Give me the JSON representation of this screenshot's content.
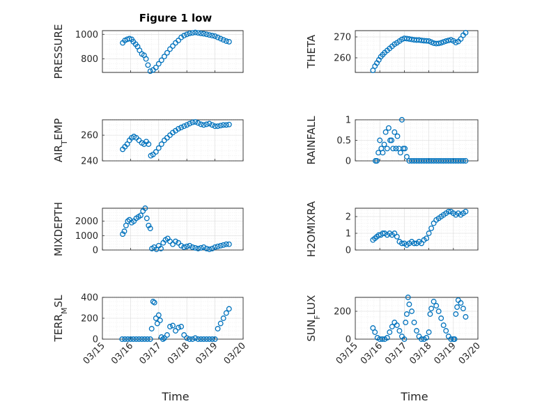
{
  "title": "Figure 1 low",
  "xlabel": "Time",
  "x_tick_labels": [
    "03/15",
    "03/16",
    "03/17",
    "03/18",
    "03/19",
    "03/20"
  ],
  "chart_data": [
    {
      "type": "scatter",
      "ylabel": "PRESSURE",
      "ylim": [
        690,
        1030
      ],
      "yticks": [
        800,
        1000
      ],
      "x": [
        15.72,
        15.8,
        15.88,
        15.96,
        16.04,
        16.1,
        16.18,
        16.25,
        16.32,
        16.4,
        16.48,
        16.55,
        16.62,
        16.7,
        16.8,
        16.9,
        17.0,
        17.1,
        17.2,
        17.3,
        17.4,
        17.5,
        17.6,
        17.7,
        17.8,
        17.9,
        18.0,
        18.1,
        18.2,
        18.3,
        18.4,
        18.5,
        18.6,
        18.7,
        18.8,
        18.9,
        19.0,
        19.1,
        19.2,
        19.3,
        19.4,
        19.5
      ],
      "y": [
        930,
        950,
        960,
        965,
        960,
        940,
        920,
        900,
        870,
        840,
        830,
        800,
        750,
        700,
        710,
        730,
        760,
        790,
        820,
        850,
        880,
        905,
        930,
        950,
        975,
        990,
        1000,
        1008,
        1012,
        1015,
        1012,
        1008,
        1005,
        1000,
        995,
        990,
        985,
        975,
        965,
        955,
        945,
        940
      ],
      "series_name": "PRESSURE"
    },
    {
      "type": "scatter",
      "ylabel": "THETA",
      "ylim": [
        253,
        273
      ],
      "yticks": [
        260,
        270
      ],
      "x": [
        15.72,
        15.8,
        15.88,
        15.96,
        16.04,
        16.12,
        16.2,
        16.3,
        16.4,
        16.5,
        16.6,
        16.7,
        16.8,
        16.9,
        17.0,
        17.1,
        17.2,
        17.3,
        17.4,
        17.5,
        17.6,
        17.7,
        17.8,
        17.9,
        18.0,
        18.1,
        18.2,
        18.3,
        18.4,
        18.5,
        18.6,
        18.7,
        18.8,
        18.9,
        19.0,
        19.1,
        19.2,
        19.3,
        19.4,
        19.5
      ],
      "y": [
        254,
        256,
        257.5,
        259,
        260.5,
        261.5,
        262.5,
        263.5,
        264.5,
        265.5,
        266.5,
        267.2,
        268,
        268.8,
        269.3,
        269.2,
        269,
        268.8,
        268.6,
        268.5,
        268.5,
        268.3,
        268.2,
        268.1,
        268,
        267.5,
        267,
        266.8,
        266.9,
        267.2,
        267.6,
        268,
        268.3,
        268.6,
        268.1,
        267.3,
        267.8,
        269,
        270.8,
        272
      ]
    },
    {
      "type": "scatter",
      "ylabel": "AIR_TEMP",
      "ylim": [
        240,
        272
      ],
      "yticks": [
        240,
        260
      ],
      "x": [
        15.72,
        15.8,
        15.88,
        15.96,
        16.04,
        16.12,
        16.2,
        16.3,
        16.4,
        16.48,
        16.56,
        16.64,
        16.72,
        16.8,
        16.9,
        17.0,
        17.1,
        17.2,
        17.3,
        17.4,
        17.5,
        17.6,
        17.7,
        17.8,
        17.9,
        18.0,
        18.1,
        18.2,
        18.3,
        18.4,
        18.5,
        18.6,
        18.7,
        18.8,
        18.9,
        19.0,
        19.1,
        19.2,
        19.3,
        19.4,
        19.5
      ],
      "y": [
        249,
        251,
        253,
        256,
        258,
        259,
        258,
        256,
        254,
        253,
        255,
        253,
        244,
        245,
        247,
        250,
        253,
        256,
        258,
        260,
        262,
        263.5,
        265,
        266,
        267,
        268,
        269,
        270,
        270.3,
        269.5,
        268.5,
        268,
        268.5,
        269,
        268,
        267,
        267,
        267.5,
        268,
        268,
        268.3
      ]
    },
    {
      "type": "scatter",
      "ylabel": "RAINFALL",
      "ylim": [
        0,
        1
      ],
      "yticks": [
        0,
        0.5,
        1
      ],
      "x": [
        15.82,
        15.88,
        15.94,
        16.0,
        16.06,
        16.12,
        16.18,
        16.24,
        16.3,
        16.36,
        16.42,
        16.48,
        16.54,
        16.6,
        16.66,
        16.72,
        16.78,
        16.84,
        16.9,
        16.96,
        17.02,
        17.1,
        17.2,
        17.3,
        17.4,
        17.5,
        17.6,
        17.7,
        17.8,
        17.9,
        18.0,
        18.1,
        18.2,
        18.3,
        18.4,
        18.5,
        18.6,
        18.7,
        18.8,
        18.9,
        19.0,
        19.1,
        19.2,
        19.3,
        19.4,
        19.5
      ],
      "y": [
        0,
        0,
        0.2,
        0.5,
        0.3,
        0.2,
        0.4,
        0.7,
        0.3,
        0.8,
        0.5,
        0.5,
        0.3,
        0.7,
        0.3,
        0.6,
        0.3,
        0.2,
        1.0,
        0.3,
        0.3,
        0.1,
        0,
        0,
        0,
        0,
        0,
        0,
        0,
        0,
        0,
        0,
        0,
        0,
        0,
        0,
        0,
        0,
        0,
        0,
        0,
        0,
        0,
        0,
        0,
        0
      ]
    },
    {
      "type": "scatter",
      "ylabel": "MIXDEPTH",
      "ylim": [
        0,
        2900
      ],
      "yticks": [
        0,
        1000,
        2000
      ],
      "x": [
        15.72,
        15.78,
        15.84,
        15.9,
        15.96,
        16.04,
        16.12,
        16.2,
        16.28,
        16.36,
        16.44,
        16.52,
        16.58,
        16.64,
        16.7,
        16.76,
        16.84,
        16.92,
        17.0,
        17.08,
        17.16,
        17.24,
        17.32,
        17.4,
        17.5,
        17.6,
        17.7,
        17.8,
        17.9,
        18.0,
        18.1,
        18.2,
        18.3,
        18.4,
        18.5,
        18.6,
        18.7,
        18.8,
        18.9,
        19.0,
        19.1,
        19.2,
        19.3,
        19.4,
        19.5
      ],
      "y": [
        1100,
        1300,
        1700,
        2000,
        2100,
        1900,
        2000,
        2200,
        2300,
        2400,
        2700,
        2900,
        2200,
        1700,
        1500,
        100,
        200,
        50,
        300,
        100,
        500,
        700,
        800,
        600,
        400,
        600,
        500,
        300,
        200,
        250,
        300,
        200,
        150,
        100,
        150,
        200,
        100,
        50,
        100,
        200,
        250,
        300,
        350,
        400,
        400
      ]
    },
    {
      "type": "scatter",
      "ylabel": "H2OMIXRA",
      "ylim": [
        0,
        2.5
      ],
      "yticks": [
        0,
        1,
        2
      ],
      "x": [
        15.72,
        15.8,
        15.88,
        15.96,
        16.04,
        16.12,
        16.2,
        16.3,
        16.4,
        16.5,
        16.6,
        16.7,
        16.8,
        16.9,
        17.0,
        17.1,
        17.2,
        17.3,
        17.4,
        17.5,
        17.6,
        17.7,
        17.8,
        17.9,
        18.0,
        18.1,
        18.2,
        18.3,
        18.4,
        18.5,
        18.6,
        18.7,
        18.8,
        18.9,
        19.0,
        19.1,
        19.2,
        19.3,
        19.4,
        19.5
      ],
      "y": [
        0.6,
        0.7,
        0.8,
        0.9,
        0.9,
        1.0,
        1.0,
        0.9,
        1.0,
        0.9,
        1.0,
        0.8,
        0.5,
        0.4,
        0.4,
        0.3,
        0.4,
        0.5,
        0.4,
        0.4,
        0.5,
        0.4,
        0.6,
        0.7,
        1.0,
        1.3,
        1.6,
        1.8,
        1.9,
        2.0,
        2.1,
        2.2,
        2.3,
        2.3,
        2.2,
        2.1,
        2.2,
        2.1,
        2.2,
        2.3
      ]
    },
    {
      "type": "scatter",
      "ylabel": "TERR_MSL",
      "ylim": [
        0,
        400
      ],
      "yticks": [
        0,
        200,
        400
      ],
      "x": [
        15.7,
        15.8,
        15.9,
        16.0,
        16.1,
        16.2,
        16.3,
        16.4,
        16.5,
        16.6,
        16.7,
        16.75,
        16.8,
        16.85,
        16.9,
        16.95,
        17.0,
        17.05,
        17.1,
        17.15,
        17.2,
        17.3,
        17.4,
        17.5,
        17.6,
        17.7,
        17.8,
        17.9,
        18.0,
        18.1,
        18.2,
        18.3,
        18.4,
        18.5,
        18.6,
        18.7,
        18.8,
        18.9,
        19.0,
        19.1,
        19.2,
        19.3,
        19.4,
        19.5
      ],
      "y": [
        0,
        0,
        0,
        0,
        0,
        0,
        0,
        0,
        0,
        0,
        0,
        100,
        360,
        350,
        200,
        150,
        230,
        180,
        20,
        0,
        10,
        40,
        120,
        130,
        80,
        110,
        120,
        40,
        10,
        0,
        0,
        10,
        0,
        0,
        0,
        0,
        0,
        0,
        0,
        100,
        150,
        200,
        250,
        290
      ]
    },
    {
      "type": "scatter",
      "ylabel": "SUN_FLUX",
      "ylim": [
        0,
        300
      ],
      "yticks": [
        0,
        200
      ],
      "x": [
        15.72,
        15.8,
        15.9,
        16.0,
        16.1,
        16.2,
        16.3,
        16.4,
        16.5,
        16.6,
        16.7,
        16.8,
        16.9,
        17.0,
        17.05,
        17.1,
        17.15,
        17.2,
        17.3,
        17.4,
        17.5,
        17.6,
        17.7,
        17.8,
        17.9,
        18.0,
        18.05,
        18.1,
        18.2,
        18.3,
        18.4,
        18.5,
        18.6,
        18.7,
        18.8,
        18.9,
        19.0,
        19.05,
        19.1,
        19.15,
        19.2,
        19.3,
        19.4,
        19.5
      ],
      "y": [
        80,
        50,
        10,
        0,
        0,
        0,
        10,
        50,
        90,
        120,
        100,
        60,
        20,
        0,
        120,
        180,
        300,
        250,
        200,
        120,
        60,
        20,
        0,
        0,
        10,
        50,
        180,
        220,
        270,
        240,
        200,
        150,
        100,
        60,
        20,
        0,
        0,
        0,
        180,
        230,
        280,
        260,
        220,
        160
      ]
    }
  ]
}
